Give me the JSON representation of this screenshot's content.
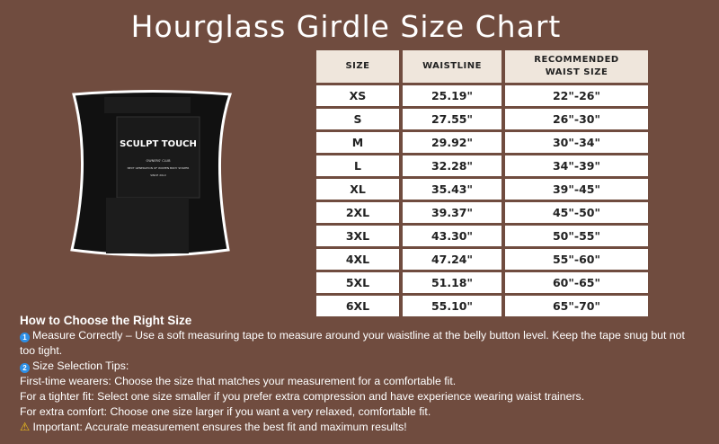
{
  "title": "Hourglass Girdle Size Chart",
  "table": {
    "headers": [
      "SIZE",
      "WAISTLINE",
      "RECOMMENDED WAIST SIZE"
    ],
    "rows": [
      [
        "XS",
        "25.19\"",
        "22\"-26\""
      ],
      [
        "S",
        "27.55\"",
        "26\"-30\""
      ],
      [
        "M",
        "29.92\"",
        "30\"-34\""
      ],
      [
        "L",
        "32.28\"",
        "34\"-39\""
      ],
      [
        "XL",
        "35.43\"",
        "39\"-45\""
      ],
      [
        "2XL",
        "39.37\"",
        "45\"-50\""
      ],
      [
        "3XL",
        "43.30\"",
        "50\"-55\""
      ],
      [
        "4XL",
        "47.24\"",
        "55\"-60\""
      ],
      [
        "5XL",
        "51.18\"",
        "60\"-65\""
      ],
      [
        "6XL",
        "55.10\"",
        "65\"-70\""
      ]
    ]
  },
  "product_logo": {
    "brand": "SCULPT TOUCH",
    "line1": "OWNERS' CLUB",
    "line2": "NEXT GENERATION OF WOMEN BODY SHAPER",
    "line3": "SINCE 20LX"
  },
  "guide": {
    "heading": "How to Choose the Right Size",
    "step1_number": "1",
    "step1": "Measure Correctly – Use a soft measuring tape to measure around your waistline at the belly button level. Keep the tape snug but not too tight.",
    "step2_number": "2",
    "step2": "Size Selection Tips:",
    "tip1": "First-time wearers: Choose the size that matches your measurement for a comfortable fit.",
    "tip2": "For a tighter fit: Select one size smaller if you prefer extra compression and have experience wearing waist trainers.",
    "tip3": "For extra comfort: Choose one size larger if you want a very relaxed, comfortable fit.",
    "important_icon": "⚠",
    "important": "Important: Accurate measurement ensures the best fit and maximum results!"
  },
  "colors": {
    "background": "#704c3f",
    "header_cell": "#efe6dc",
    "cell": "#ffffff"
  }
}
